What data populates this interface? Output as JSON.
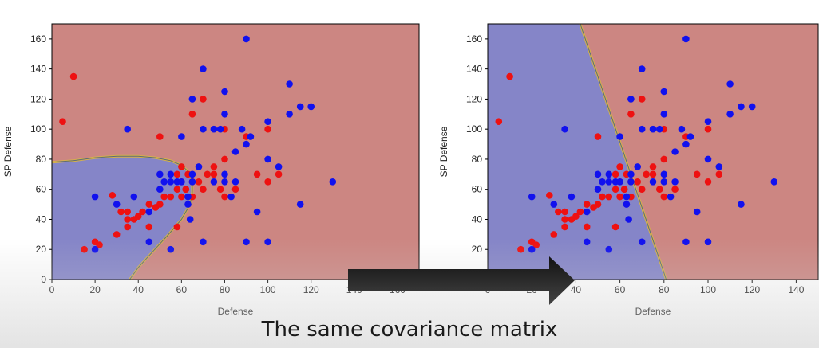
{
  "caption": "The same covariance matrix",
  "colors": {
    "blue_region": "#8585c8",
    "red_region": "#cc8682",
    "blue_point": "#1111ee",
    "red_point": "#ee1111",
    "arrow": "#000000"
  },
  "chart_data": [
    {
      "type": "scatter",
      "title": "",
      "xlabel": "Defense",
      "ylabel": "SP Defense",
      "xlim": [
        0,
        170
      ],
      "ylim": [
        0,
        170
      ],
      "xticks": [
        0,
        20,
        40,
        60,
        80,
        100,
        120,
        140,
        160
      ],
      "yticks": [
        0,
        20,
        40,
        60,
        80,
        100,
        120,
        140,
        160
      ],
      "decision_boundary": "quadratic (ellipse around lower-left cluster)",
      "boundary_points": [
        [
          0,
          78
        ],
        [
          10,
          79
        ],
        [
          20,
          81
        ],
        [
          30,
          82
        ],
        [
          40,
          82
        ],
        [
          48,
          81
        ],
        [
          55,
          79
        ],
        [
          60,
          76
        ],
        [
          63,
          72
        ],
        [
          65,
          66
        ],
        [
          65,
          58
        ],
        [
          64,
          50
        ],
        [
          60,
          40
        ],
        [
          54,
          30
        ],
        [
          47,
          19
        ],
        [
          40,
          8
        ],
        [
          36,
          0
        ]
      ],
      "series": [
        {
          "name": "red class",
          "points": [
            [
              5,
              105
            ],
            [
              10,
              135
            ],
            [
              15,
              20
            ],
            [
              20,
              25
            ],
            [
              22,
              23
            ],
            [
              28,
              56
            ],
            [
              30,
              30
            ],
            [
              32,
              45
            ],
            [
              35,
              35
            ],
            [
              35,
              45
            ],
            [
              35,
              40
            ],
            [
              38,
              40
            ],
            [
              40,
              42
            ],
            [
              42,
              45
            ],
            [
              45,
              35
            ],
            [
              45,
              50
            ],
            [
              48,
              48
            ],
            [
              50,
              95
            ],
            [
              50,
              50
            ],
            [
              52,
              55
            ],
            [
              55,
              55
            ],
            [
              58,
              60
            ],
            [
              58,
              70
            ],
            [
              60,
              55
            ],
            [
              60,
              65
            ],
            [
              60,
              75
            ],
            [
              62,
              60
            ],
            [
              63,
              70
            ],
            [
              65,
              110
            ],
            [
              65,
              65
            ],
            [
              65,
              55
            ],
            [
              68,
              65
            ],
            [
              70,
              120
            ],
            [
              70,
              60
            ],
            [
              72,
              70
            ],
            [
              75,
              70
            ],
            [
              75,
              75
            ],
            [
              78,
              60
            ],
            [
              80,
              80
            ],
            [
              80,
              100
            ],
            [
              80,
              55
            ],
            [
              85,
              60
            ],
            [
              90,
              95
            ],
            [
              95,
              70
            ],
            [
              100,
              65
            ],
            [
              100,
              100
            ],
            [
              105,
              70
            ],
            [
              58,
              35
            ],
            [
              62,
              60
            ]
          ]
        },
        {
          "name": "blue class",
          "points": [
            [
              20,
              55
            ],
            [
              20,
              20
            ],
            [
              30,
              50
            ],
            [
              35,
              100
            ],
            [
              38,
              55
            ],
            [
              45,
              25
            ],
            [
              45,
              45
            ],
            [
              50,
              70
            ],
            [
              50,
              60
            ],
            [
              52,
              65
            ],
            [
              55,
              70
            ],
            [
              55,
              65
            ],
            [
              55,
              20
            ],
            [
              58,
              65
            ],
            [
              60,
              95
            ],
            [
              63,
              50
            ],
            [
              63,
              55
            ],
            [
              65,
              120
            ],
            [
              65,
              65
            ],
            [
              65,
              70
            ],
            [
              68,
              75
            ],
            [
              70,
              140
            ],
            [
              70,
              100
            ],
            [
              70,
              25
            ],
            [
              75,
              100
            ],
            [
              75,
              65
            ],
            [
              78,
              100
            ],
            [
              80,
              70
            ],
            [
              80,
              125
            ],
            [
              80,
              110
            ],
            [
              80,
              65
            ],
            [
              83,
              55
            ],
            [
              85,
              85
            ],
            [
              85,
              65
            ],
            [
              88,
              100
            ],
            [
              90,
              160
            ],
            [
              90,
              90
            ],
            [
              90,
              25
            ],
            [
              92,
              95
            ],
            [
              95,
              45
            ],
            [
              100,
              105
            ],
            [
              100,
              80
            ],
            [
              100,
              25
            ],
            [
              105,
              75
            ],
            [
              110,
              130
            ],
            [
              110,
              110
            ],
            [
              115,
              115
            ],
            [
              115,
              50
            ],
            [
              120,
              115
            ],
            [
              130,
              65
            ],
            [
              60,
              65
            ],
            [
              64,
              40
            ]
          ]
        }
      ]
    },
    {
      "type": "scatter",
      "title": "",
      "xlabel": "Defense",
      "ylabel": "SP Defense",
      "xlim": [
        0,
        150
      ],
      "ylim": [
        0,
        170
      ],
      "xticks": [
        0,
        20,
        40,
        60,
        80,
        100,
        120,
        140
      ],
      "yticks": [
        0,
        20,
        40,
        60,
        80,
        100,
        120,
        140,
        160
      ],
      "decision_boundary": "linear",
      "boundary_points": [
        [
          42,
          170
        ],
        [
          81,
          0
        ]
      ],
      "series": [
        {
          "name": "red class",
          "points": [
            [
              5,
              105
            ],
            [
              10,
              135
            ],
            [
              15,
              20
            ],
            [
              20,
              25
            ],
            [
              22,
              23
            ],
            [
              28,
              56
            ],
            [
              30,
              30
            ],
            [
              32,
              45
            ],
            [
              35,
              35
            ],
            [
              35,
              45
            ],
            [
              35,
              40
            ],
            [
              38,
              40
            ],
            [
              40,
              42
            ],
            [
              42,
              45
            ],
            [
              45,
              35
            ],
            [
              45,
              50
            ],
            [
              48,
              48
            ],
            [
              50,
              95
            ],
            [
              50,
              50
            ],
            [
              52,
              55
            ],
            [
              55,
              55
            ],
            [
              58,
              60
            ],
            [
              58,
              70
            ],
            [
              60,
              55
            ],
            [
              60,
              65
            ],
            [
              60,
              75
            ],
            [
              62,
              60
            ],
            [
              63,
              70
            ],
            [
              65,
              110
            ],
            [
              65,
              65
            ],
            [
              65,
              55
            ],
            [
              68,
              65
            ],
            [
              70,
              120
            ],
            [
              70,
              60
            ],
            [
              72,
              70
            ],
            [
              75,
              70
            ],
            [
              75,
              75
            ],
            [
              78,
              60
            ],
            [
              80,
              80
            ],
            [
              80,
              100
            ],
            [
              80,
              55
            ],
            [
              85,
              60
            ],
            [
              90,
              95
            ],
            [
              95,
              70
            ],
            [
              100,
              65
            ],
            [
              100,
              100
            ],
            [
              105,
              70
            ],
            [
              58,
              35
            ],
            [
              62,
              60
            ]
          ]
        },
        {
          "name": "blue class",
          "points": [
            [
              20,
              55
            ],
            [
              20,
              20
            ],
            [
              30,
              50
            ],
            [
              35,
              100
            ],
            [
              38,
              55
            ],
            [
              45,
              25
            ],
            [
              45,
              45
            ],
            [
              50,
              70
            ],
            [
              50,
              60
            ],
            [
              52,
              65
            ],
            [
              55,
              70
            ],
            [
              55,
              65
            ],
            [
              55,
              20
            ],
            [
              58,
              65
            ],
            [
              60,
              95
            ],
            [
              63,
              50
            ],
            [
              63,
              55
            ],
            [
              65,
              120
            ],
            [
              65,
              65
            ],
            [
              65,
              70
            ],
            [
              68,
              75
            ],
            [
              70,
              140
            ],
            [
              70,
              100
            ],
            [
              70,
              25
            ],
            [
              75,
              100
            ],
            [
              75,
              65
            ],
            [
              78,
              100
            ],
            [
              80,
              70
            ],
            [
              80,
              125
            ],
            [
              80,
              110
            ],
            [
              80,
              65
            ],
            [
              83,
              55
            ],
            [
              85,
              85
            ],
            [
              85,
              65
            ],
            [
              88,
              100
            ],
            [
              90,
              160
            ],
            [
              90,
              90
            ],
            [
              90,
              25
            ],
            [
              92,
              95
            ],
            [
              95,
              45
            ],
            [
              100,
              105
            ],
            [
              100,
              80
            ],
            [
              100,
              25
            ],
            [
              105,
              75
            ],
            [
              110,
              130
            ],
            [
              110,
              110
            ],
            [
              115,
              115
            ],
            [
              115,
              50
            ],
            [
              120,
              115
            ],
            [
              130,
              65
            ],
            [
              60,
              65
            ],
            [
              64,
              40
            ]
          ]
        }
      ]
    }
  ]
}
